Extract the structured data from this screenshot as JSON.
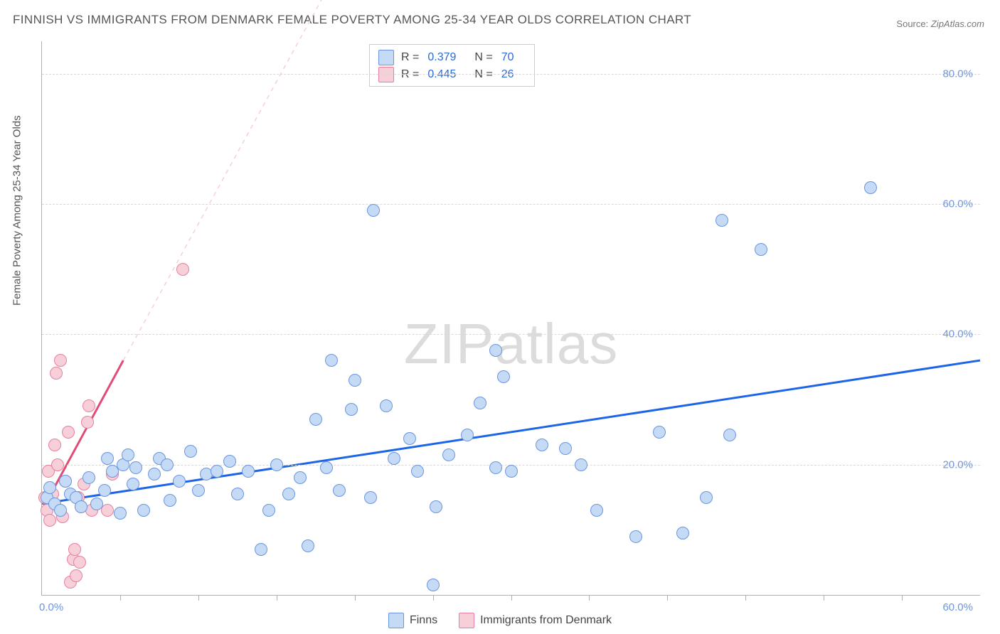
{
  "title": "FINNISH VS IMMIGRANTS FROM DENMARK FEMALE POVERTY AMONG 25-34 YEAR OLDS CORRELATION CHART",
  "source_label": "Source:",
  "source_value": "ZipAtlas.com",
  "watermark_a": "ZIP",
  "watermark_b": "atlas",
  "chart": {
    "type": "scatter",
    "x_domain": [
      0,
      60
    ],
    "y_domain": [
      0,
      85
    ],
    "x_min_label": "0.0%",
    "x_max_label": "60.0%",
    "y_ticks": [
      20,
      40,
      60,
      80
    ],
    "y_tick_labels": [
      "20.0%",
      "40.0%",
      "60.0%",
      "80.0%"
    ],
    "x_minor_ticks": [
      5,
      10,
      15,
      20,
      25,
      30,
      35,
      40,
      45,
      50,
      55
    ],
    "y_axis_title": "Female Poverty Among 25-34 Year Olds",
    "grid_color": "#d8d8d8",
    "axis_color": "#b0b0b0",
    "background_color": "#ffffff",
    "marker_radius": 9,
    "marker_stroke_width": 1.5,
    "trend_line_width": 3,
    "series": {
      "finns": {
        "label": "Finns",
        "fill": "#c4daf5",
        "stroke": "#6b95e0",
        "R": "0.379",
        "N": "70",
        "trend": {
          "x1": 0,
          "y1": 14,
          "x2": 60,
          "y2": 36,
          "color": "#1c64e8",
          "dash_extend_to": null
        },
        "points": [
          [
            0.3,
            15
          ],
          [
            0.5,
            16.5
          ],
          [
            0.8,
            14
          ],
          [
            1.2,
            13
          ],
          [
            1.5,
            17.5
          ],
          [
            1.8,
            15.5
          ],
          [
            2.2,
            15
          ],
          [
            2.5,
            13.5
          ],
          [
            3.0,
            18
          ],
          [
            3.5,
            14
          ],
          [
            4.0,
            16
          ],
          [
            4.2,
            21
          ],
          [
            4.5,
            19
          ],
          [
            5.0,
            12.5
          ],
          [
            5.2,
            20
          ],
          [
            5.5,
            21.5
          ],
          [
            5.8,
            17
          ],
          [
            6.0,
            19.5
          ],
          [
            6.5,
            13
          ],
          [
            7.2,
            18.5
          ],
          [
            7.5,
            21
          ],
          [
            8.0,
            20
          ],
          [
            8.2,
            14.5
          ],
          [
            8.8,
            17.5
          ],
          [
            9.5,
            22
          ],
          [
            10.0,
            16
          ],
          [
            10.5,
            18.5
          ],
          [
            11.2,
            19
          ],
          [
            12.0,
            20.5
          ],
          [
            12.5,
            15.5
          ],
          [
            13.2,
            19
          ],
          [
            14.0,
            7
          ],
          [
            14.5,
            13
          ],
          [
            15.0,
            20
          ],
          [
            15.8,
            15.5
          ],
          [
            16.5,
            18
          ],
          [
            17.0,
            7.5
          ],
          [
            17.5,
            27
          ],
          [
            18.2,
            19.5
          ],
          [
            18.5,
            36
          ],
          [
            19.0,
            16
          ],
          [
            19.8,
            28.5
          ],
          [
            20.0,
            33
          ],
          [
            21.0,
            15
          ],
          [
            21.2,
            59
          ],
          [
            22.0,
            29
          ],
          [
            22.5,
            21
          ],
          [
            23.5,
            24
          ],
          [
            24.0,
            19
          ],
          [
            25.0,
            1.5
          ],
          [
            25.2,
            13.5
          ],
          [
            26.0,
            21.5
          ],
          [
            27.2,
            24.5
          ],
          [
            28.0,
            29.5
          ],
          [
            29.0,
            37.5
          ],
          [
            29.0,
            19.5
          ],
          [
            29.5,
            33.5
          ],
          [
            30.0,
            19
          ],
          [
            32.0,
            23
          ],
          [
            33.5,
            22.5
          ],
          [
            34.5,
            20
          ],
          [
            35.5,
            13
          ],
          [
            38.0,
            9
          ],
          [
            39.5,
            25
          ],
          [
            41.0,
            9.5
          ],
          [
            42.5,
            15
          ],
          [
            43.5,
            57.5
          ],
          [
            44.0,
            24.5
          ],
          [
            46.0,
            53
          ],
          [
            53.0,
            62.5
          ]
        ]
      },
      "denmark": {
        "label": "Immigrants from Denmark",
        "fill": "#f6cfd9",
        "stroke": "#e87f9e",
        "R": "0.445",
        "N": "26",
        "trend": {
          "x1": 0,
          "y1": 13,
          "x2": 5.2,
          "y2": 36,
          "color": "#e34b77",
          "dash_extend_to": [
            21,
            105
          ]
        },
        "points": [
          [
            0.2,
            15
          ],
          [
            0.3,
            13
          ],
          [
            0.4,
            19
          ],
          [
            0.5,
            11.5
          ],
          [
            0.7,
            15.5
          ],
          [
            0.8,
            23
          ],
          [
            0.9,
            34
          ],
          [
            1.0,
            20
          ],
          [
            1.2,
            36
          ],
          [
            1.3,
            12
          ],
          [
            1.5,
            17.5
          ],
          [
            1.7,
            25
          ],
          [
            1.8,
            2
          ],
          [
            2.0,
            5.5
          ],
          [
            2.1,
            7
          ],
          [
            2.2,
            3
          ],
          [
            2.3,
            15
          ],
          [
            2.4,
            5
          ],
          [
            2.5,
            13.5
          ],
          [
            2.7,
            17
          ],
          [
            2.9,
            26.5
          ],
          [
            3.0,
            29
          ],
          [
            3.2,
            13
          ],
          [
            4.2,
            13
          ],
          [
            4.5,
            18.5
          ],
          [
            9.0,
            50
          ]
        ]
      }
    },
    "legend_rn": {
      "R_label": "R =",
      "N_label": "N ="
    }
  }
}
